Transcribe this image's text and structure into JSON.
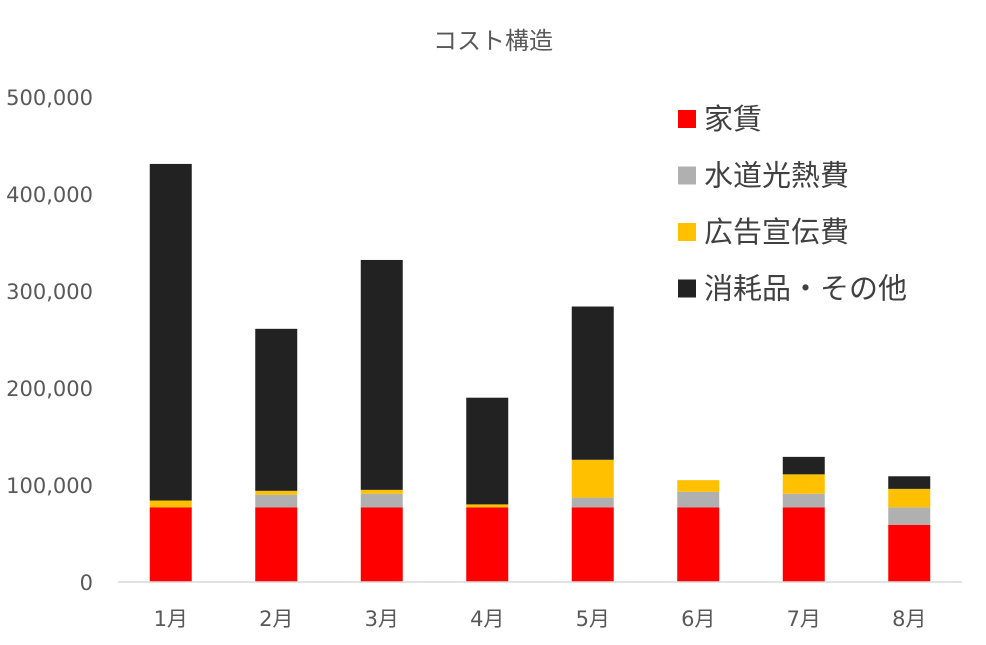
{
  "chart_data": {
    "type": "bar",
    "stacked": true,
    "title": "コスト構造",
    "xlabel": "",
    "ylabel": "",
    "ylim": [
      0,
      500000
    ],
    "y_ticks": [
      "0",
      "100,000",
      "200,000",
      "300,000",
      "400,000",
      "500,000"
    ],
    "y_tick_values": [
      0,
      100000,
      200000,
      300000,
      400000,
      500000
    ],
    "grid": false,
    "legend_position": "top-right",
    "categories": [
      "1月",
      "2月",
      "3月",
      "4月",
      "5月",
      "6月",
      "7月",
      "8月"
    ],
    "series": [
      {
        "name": "家賃",
        "color": "#ff0000",
        "values": [
          77000,
          77000,
          77000,
          77000,
          77000,
          77000,
          77000,
          59000
        ]
      },
      {
        "name": "水道光熱費",
        "color": "#b0b0b0",
        "values": [
          0,
          13000,
          14000,
          0,
          10000,
          16000,
          14000,
          18000
        ]
      },
      {
        "name": "広告宣伝費",
        "color": "#ffc000",
        "values": [
          7000,
          4000,
          4000,
          3000,
          39000,
          12000,
          20000,
          19000
        ]
      },
      {
        "name": "消耗品・その他",
        "color": "#222222",
        "values": [
          347000,
          167000,
          237000,
          110000,
          158000,
          0,
          18000,
          13000
        ]
      }
    ]
  }
}
